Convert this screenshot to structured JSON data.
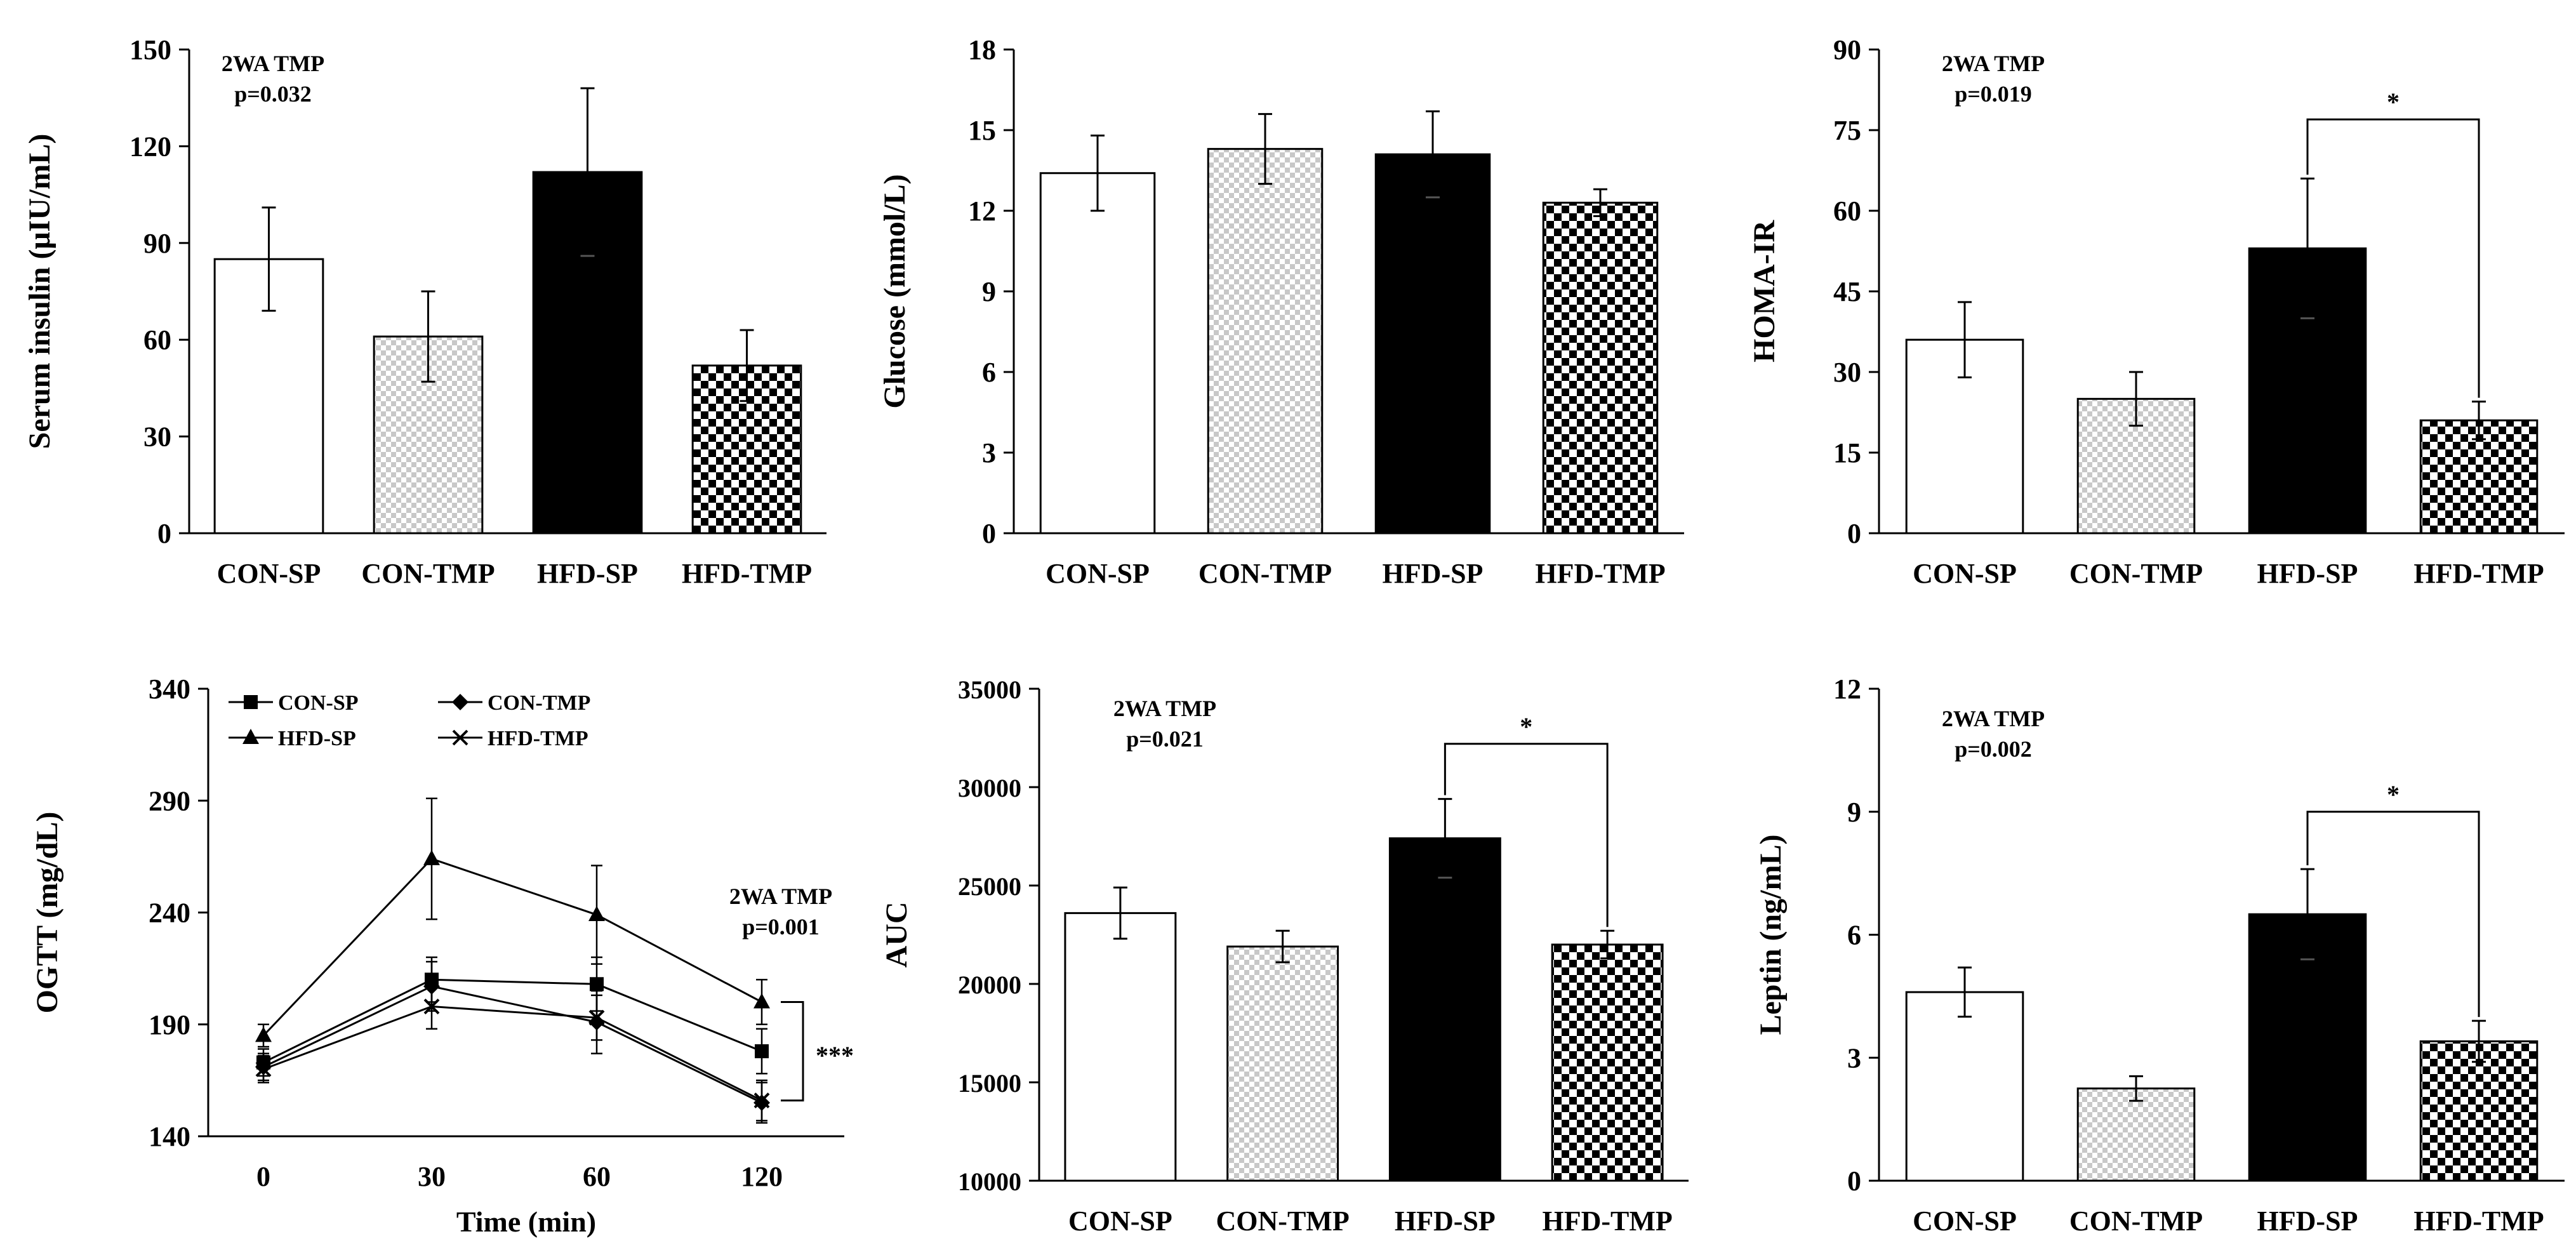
{
  "chart_data": [
    {
      "type": "bar",
      "ylabel": "Serum insulin (μIU/mL)",
      "ylim": [
        0,
        150
      ],
      "yticks": [
        0,
        30,
        60,
        90,
        120,
        150
      ],
      "categories": [
        "CON-SP",
        "CON-TMP",
        "HFD-SP",
        "HFD-TMP"
      ],
      "values": [
        85,
        61,
        112,
        52
      ],
      "errors": [
        16,
        14,
        26,
        11
      ],
      "annotation": [
        "2WA TMP",
        "p=0.032"
      ]
    },
    {
      "type": "bar",
      "ylabel": "Glucose (mmol/L)",
      "ylim": [
        0,
        18
      ],
      "yticks": [
        0,
        3,
        6,
        9,
        12,
        15,
        18
      ],
      "categories": [
        "CON-SP",
        "CON-TMP",
        "HFD-SP",
        "HFD-TMP"
      ],
      "values": [
        13.4,
        14.3,
        14.1,
        12.3
      ],
      "errors": [
        1.4,
        1.3,
        1.6,
        0.5
      ]
    },
    {
      "type": "bar",
      "ylabel": "HOMA-IR",
      "ylim": [
        0,
        90
      ],
      "yticks": [
        0,
        15,
        30,
        45,
        60,
        75,
        90
      ],
      "categories": [
        "CON-SP",
        "CON-TMP",
        "HFD-SP",
        "HFD-TMP"
      ],
      "values": [
        36,
        25,
        53,
        21
      ],
      "errors": [
        7,
        5,
        13,
        3.5
      ],
      "annotation": [
        "2WA TMP",
        "p=0.019"
      ],
      "significance": {
        "from": "HFD-SP",
        "to": "HFD-TMP",
        "label": "*",
        "level": 77
      }
    },
    {
      "type": "line",
      "ylabel": "OGTT (mg/dL)",
      "xlabel": "Time (min)",
      "ylim": [
        140,
        340
      ],
      "yticks": [
        140,
        190,
        240,
        290,
        340
      ],
      "x": [
        "0",
        "30",
        "60",
        "120"
      ],
      "series": [
        {
          "name": "CON-SP",
          "marker": "square",
          "values": [
            173,
            210,
            208,
            178
          ],
          "errors": [
            6,
            10,
            12,
            10
          ]
        },
        {
          "name": "CON-TMP",
          "marker": "diamond",
          "values": [
            171,
            207,
            191,
            155
          ],
          "errors": [
            6,
            11,
            14,
            9
          ]
        },
        {
          "name": "HFD-SP",
          "marker": "triangle",
          "values": [
            185,
            264,
            239,
            200
          ],
          "errors": [
            5,
            27,
            22,
            10
          ]
        },
        {
          "name": "HFD-TMP",
          "marker": "x",
          "values": [
            170,
            198,
            193,
            156
          ],
          "errors": [
            6,
            10,
            10,
            9
          ]
        }
      ],
      "annotation": [
        "2WA TMP",
        "p=0.001"
      ],
      "significance": {
        "between": [
          "HFD-SP",
          "HFD-TMP"
        ],
        "at": "120",
        "label": "***"
      }
    },
    {
      "type": "bar",
      "ylabel": "AUC",
      "ylim": [
        10000,
        35000
      ],
      "yticks": [
        10000,
        15000,
        20000,
        25000,
        30000,
        35000
      ],
      "categories": [
        "CON-SP",
        "CON-TMP",
        "HFD-SP",
        "HFD-TMP"
      ],
      "values": [
        23600,
        21900,
        27400,
        22000
      ],
      "errors": [
        1300,
        800,
        2000,
        700
      ],
      "annotation": [
        "2WA TMP",
        "p=0.021"
      ],
      "significance": {
        "from": "HFD-SP",
        "to": "HFD-TMP",
        "label": "*",
        "level": 32200
      }
    },
    {
      "type": "bar",
      "ylabel": "Leptin (ng/mL)",
      "ylim": [
        0,
        12
      ],
      "yticks": [
        0,
        3,
        6,
        9,
        12
      ],
      "categories": [
        "CON-SP",
        "CON-TMP",
        "HFD-SP",
        "HFD-TMP"
      ],
      "values": [
        4.6,
        2.25,
        6.5,
        3.4
      ],
      "errors": [
        0.6,
        0.3,
        1.1,
        0.5
      ],
      "annotation": [
        "2WA TMP",
        "p=0.002"
      ],
      "significance": {
        "from": "HFD-SP",
        "to": "HFD-TMP",
        "label": "*",
        "level": 9.0
      }
    }
  ]
}
